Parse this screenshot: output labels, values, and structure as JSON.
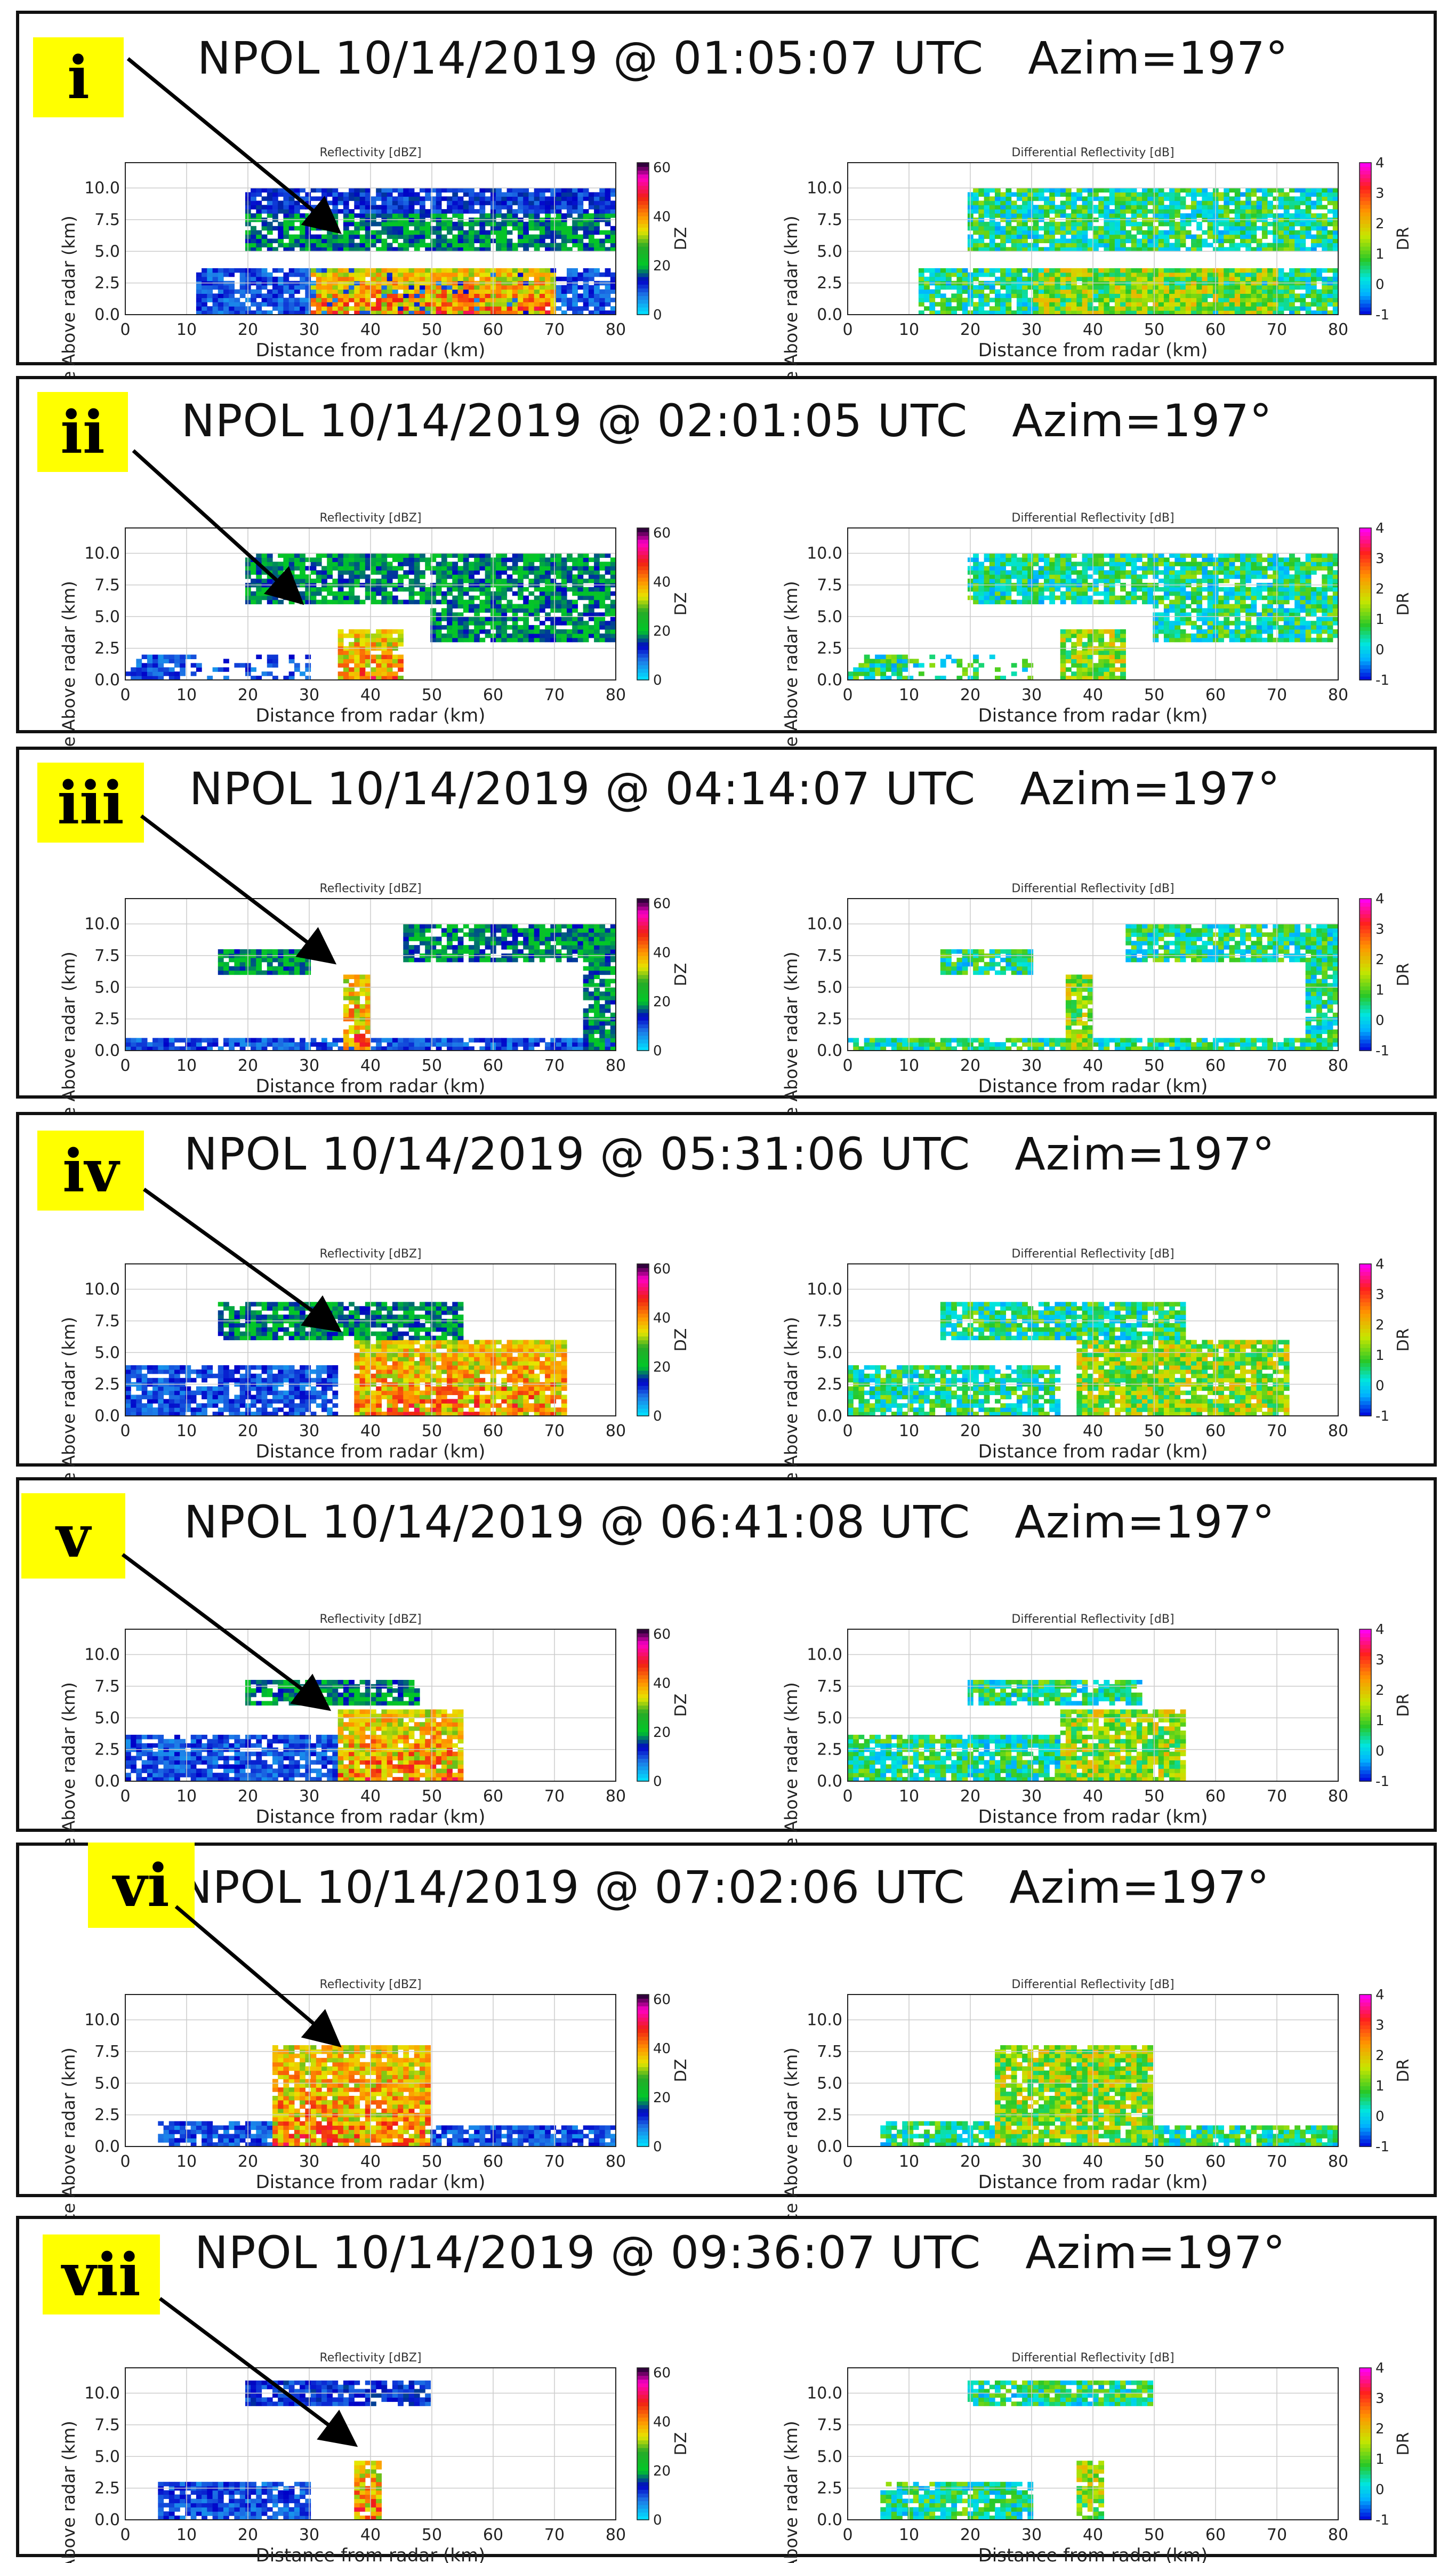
{
  "figure": {
    "colors": {
      "frame": "#111111",
      "badge": "#ffff00",
      "grid": "#cccccc"
    },
    "labels": {
      "left_title": "Reflectivity [dBZ]",
      "right_title": "Differential Reflectivity [dB]",
      "xlabel": "Distance from radar (km)",
      "ylabel": "Distance Above radar (km)",
      "left_cbar_label": "DZ",
      "right_cbar_label": "DR",
      "left_cbar_ticks": [
        "60",
        "40",
        "20",
        "0"
      ],
      "right_cbar_ticks": [
        "4",
        "3",
        "2",
        "1",
        "0",
        "-1"
      ],
      "x_ticks": [
        "0",
        "10",
        "20",
        "30",
        "40",
        "50",
        "60",
        "70",
        "80"
      ],
      "y_ticks": [
        "0.0",
        "2.5",
        "5.0",
        "7.5",
        "10.0"
      ]
    },
    "panels": [
      {
        "badge": "i",
        "title": "NPOL 10/14/2019 @ 01:05:07 UTC   Azim=197°"
      },
      {
        "badge": "ii",
        "title": "NPOL 10/14/2019 @ 02:01:05 UTC   Azim=197°"
      },
      {
        "badge": "iii",
        "title": "NPOL 10/14/2019 @ 04:14:07 UTC   Azim=197°"
      },
      {
        "badge": "iv",
        "title": "NPOL 10/14/2019 @ 05:31:06 UTC   Azim=197°"
      },
      {
        "badge": "v",
        "title": "NPOL 10/14/2019 @ 06:41:08 UTC   Azim=197°"
      },
      {
        "badge": "vi",
        "title": "NPOL 10/14/2019 @ 07:02:06 UTC   Azim=197°"
      },
      {
        "badge": "vii",
        "title": "NPOL 10/14/2019 @ 09:36:07 UTC   Azim=197°"
      }
    ]
  },
  "chart_data": [
    {
      "type": "heatmap",
      "field": "Reflectivity [dBZ]",
      "colorbar": "DZ",
      "clim": [
        0,
        60
      ],
      "xlim": [
        0,
        80
      ],
      "ylim": [
        0,
        12
      ],
      "time": "01:05:07 UTC",
      "xlabel": "Distance from radar (km)",
      "ylabel": "Distance Above radar (km)"
    },
    {
      "type": "heatmap",
      "field": "Differential Reflectivity [dB]",
      "colorbar": "DR",
      "clim": [
        -1,
        4
      ],
      "xlim": [
        0,
        80
      ],
      "ylim": [
        0,
        12
      ],
      "time": "01:05:07 UTC"
    },
    {
      "type": "heatmap",
      "field": "Reflectivity [dBZ]",
      "colorbar": "DZ",
      "clim": [
        0,
        60
      ],
      "xlim": [
        0,
        80
      ],
      "ylim": [
        0,
        12
      ],
      "time": "02:01:05 UTC"
    },
    {
      "type": "heatmap",
      "field": "Differential Reflectivity [dB]",
      "colorbar": "DR",
      "clim": [
        -1,
        4
      ],
      "xlim": [
        0,
        80
      ],
      "ylim": [
        0,
        12
      ],
      "time": "02:01:05 UTC"
    },
    {
      "type": "heatmap",
      "field": "Reflectivity [dBZ]",
      "colorbar": "DZ",
      "clim": [
        0,
        60
      ],
      "xlim": [
        0,
        80
      ],
      "ylim": [
        0,
        12
      ],
      "time": "04:14:07 UTC"
    },
    {
      "type": "heatmap",
      "field": "Differential Reflectivity [dB]",
      "colorbar": "DR",
      "clim": [
        -1,
        4
      ],
      "xlim": [
        0,
        80
      ],
      "ylim": [
        0,
        12
      ],
      "time": "04:14:07 UTC"
    },
    {
      "type": "heatmap",
      "field": "Reflectivity [dBZ]",
      "colorbar": "DZ",
      "clim": [
        0,
        60
      ],
      "xlim": [
        0,
        80
      ],
      "ylim": [
        0,
        12
      ],
      "time": "05:31:06 UTC"
    },
    {
      "type": "heatmap",
      "field": "Differential Reflectivity [dB]",
      "colorbar": "DR",
      "clim": [
        -1,
        4
      ],
      "xlim": [
        0,
        80
      ],
      "ylim": [
        0,
        12
      ],
      "time": "05:31:06 UTC"
    },
    {
      "type": "heatmap",
      "field": "Reflectivity [dBZ]",
      "colorbar": "DZ",
      "clim": [
        0,
        60
      ],
      "xlim": [
        0,
        80
      ],
      "ylim": [
        0,
        12
      ],
      "time": "06:41:08 UTC"
    },
    {
      "type": "heatmap",
      "field": "Differential Reflectivity [dB]",
      "colorbar": "DR",
      "clim": [
        -1,
        4
      ],
      "xlim": [
        0,
        80
      ],
      "ylim": [
        0,
        12
      ],
      "time": "06:41:08 UTC"
    },
    {
      "type": "heatmap",
      "field": "Reflectivity [dBZ]",
      "colorbar": "DZ",
      "clim": [
        0,
        60
      ],
      "xlim": [
        0,
        80
      ],
      "ylim": [
        0,
        12
      ],
      "time": "07:02:06 UTC"
    },
    {
      "type": "heatmap",
      "field": "Differential Reflectivity [dB]",
      "colorbar": "DR",
      "clim": [
        -1,
        4
      ],
      "xlim": [
        0,
        80
      ],
      "ylim": [
        0,
        12
      ],
      "time": "07:02:06 UTC"
    },
    {
      "type": "heatmap",
      "field": "Reflectivity [dBZ]",
      "colorbar": "DZ",
      "clim": [
        0,
        60
      ],
      "xlim": [
        0,
        80
      ],
      "ylim": [
        0,
        12
      ],
      "time": "09:36:07 UTC"
    },
    {
      "type": "heatmap",
      "field": "Differential Reflectivity [dB]",
      "colorbar": "DR",
      "clim": [
        -1,
        4
      ],
      "xlim": [
        0,
        80
      ],
      "ylim": [
        0,
        12
      ],
      "time": "09:36:07 UTC"
    }
  ]
}
